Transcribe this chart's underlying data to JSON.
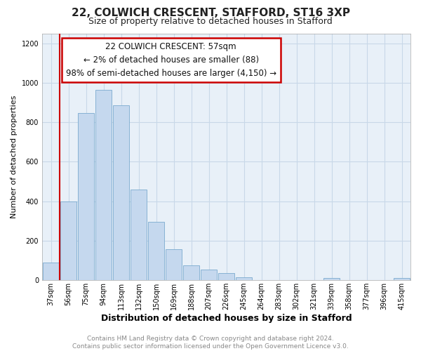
{
  "title": "22, COLWICH CRESCENT, STAFFORD, ST16 3XP",
  "subtitle": "Size of property relative to detached houses in Stafford",
  "xlabel": "Distribution of detached houses by size in Stafford",
  "ylabel": "Number of detached properties",
  "categories": [
    "37sqm",
    "56sqm",
    "75sqm",
    "94sqm",
    "113sqm",
    "132sqm",
    "150sqm",
    "169sqm",
    "188sqm",
    "207sqm",
    "226sqm",
    "245sqm",
    "264sqm",
    "283sqm",
    "302sqm",
    "321sqm",
    "339sqm",
    "358sqm",
    "377sqm",
    "396sqm",
    "415sqm"
  ],
  "values": [
    90,
    400,
    848,
    965,
    885,
    460,
    295,
    158,
    75,
    55,
    35,
    15,
    0,
    0,
    0,
    0,
    10,
    0,
    0,
    0,
    10
  ],
  "bar_color": "#c5d8ee",
  "bar_edge_color": "#7aaacf",
  "highlight_index": 1,
  "highlight_edge_color": "#cc0000",
  "box_text_line1": "22 COLWICH CRESCENT: 57sqm",
  "box_text_line2": "← 2% of detached houses are smaller (88)",
  "box_text_line3": "98% of semi-detached houses are larger (4,150) →",
  "box_edge_color": "#cc0000",
  "ylim_max": 1250,
  "yticks": [
    0,
    200,
    400,
    600,
    800,
    1000,
    1200
  ],
  "footer_line1": "Contains HM Land Registry data © Crown copyright and database right 2024.",
  "footer_line2": "Contains public sector information licensed under the Open Government Licence v3.0.",
  "plot_bg_color": "#e8f0f8",
  "fig_bg_color": "#ffffff",
  "grid_color": "#c8d8e8",
  "title_fontsize": 11,
  "subtitle_fontsize": 9,
  "tick_fontsize": 7,
  "ylabel_fontsize": 8,
  "xlabel_fontsize": 9,
  "footer_fontsize": 6.5,
  "annotation_fontsize": 8.5,
  "red_line_x": 1.5
}
